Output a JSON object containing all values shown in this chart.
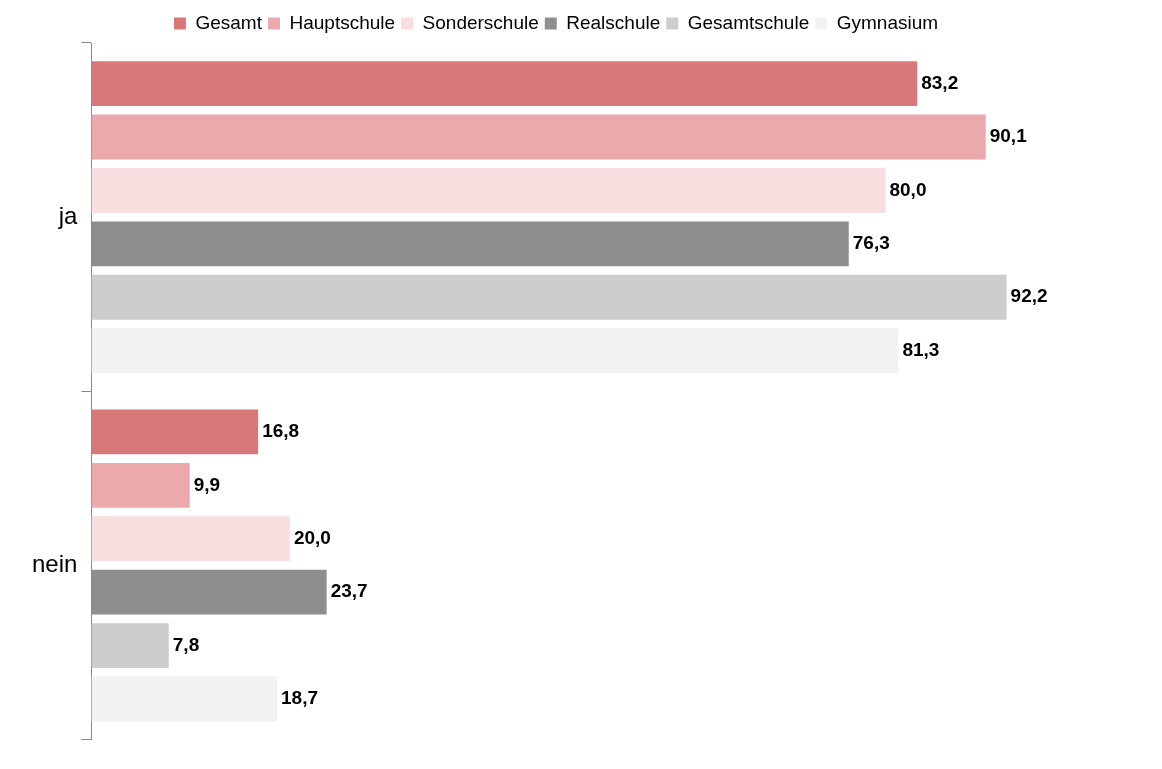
{
  "chart_data": {
    "type": "bar",
    "orientation": "horizontal",
    "categories": [
      "ja",
      "nein"
    ],
    "tick_labels": "y",
    "legend": "top",
    "data_labels": true,
    "series": [
      {
        "name": "Gesamt",
        "color": "#d9787b",
        "values": [
          83.2,
          16.8
        ],
        "value_labels": [
          "83,2",
          "16,8"
        ]
      },
      {
        "name": "Hauptschule",
        "color": "#eba9ab",
        "values": [
          90.1,
          9.9
        ],
        "value_labels": [
          "90,1",
          "9,9"
        ]
      },
      {
        "name": "Sonderschule",
        "color": "#f8dede",
        "values": [
          80.0,
          20.0
        ],
        "value_labels": [
          "80,0",
          "20,0"
        ]
      },
      {
        "name": "Realschule",
        "color": "#8e8e8e",
        "values": [
          76.3,
          23.7
        ],
        "value_labels": [
          "76,3",
          "23,7"
        ]
      },
      {
        "name": "Gesamtschule",
        "color": "#cdcdcd",
        "values": [
          92.2,
          7.8
        ],
        "value_labels": [
          "92,2",
          "7,8"
        ]
      },
      {
        "name": "Gymnasium",
        "color": "#f2f2f2",
        "values": [
          81.3,
          18.7
        ],
        "value_labels": [
          "81,3",
          "18,7"
        ]
      }
    ]
  }
}
